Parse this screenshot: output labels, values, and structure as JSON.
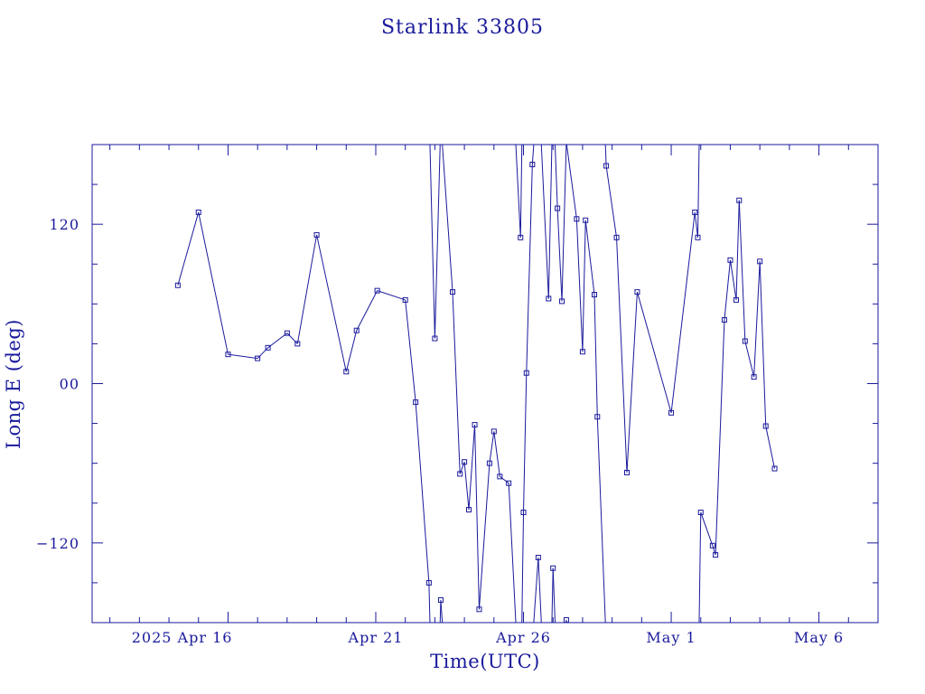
{
  "chart_data": {
    "type": "line",
    "title": "Starlink 33805",
    "xlabel": "Time(UTC)",
    "ylabel": "Long E (deg)",
    "x_unit": "days (April 2025)",
    "xlim": [
      11.4,
      38.0
    ],
    "ylim": [
      -180,
      180
    ],
    "x_tick_labels": [
      {
        "value": 16,
        "label": "2025 Apr 16"
      },
      {
        "value": 21,
        "label": "Apr 21"
      },
      {
        "value": 26,
        "label": "Apr 26"
      },
      {
        "value": 31,
        "label": "May  1"
      },
      {
        "value": 36,
        "label": "May  6"
      }
    ],
    "x_minor_ticks": [
      12,
      13,
      14,
      15,
      16,
      17,
      18,
      19,
      20,
      21,
      22,
      23,
      24,
      25,
      26,
      27,
      28,
      29,
      30,
      31,
      32,
      33,
      34,
      35,
      36,
      37
    ],
    "y_tick_labels": [
      {
        "value": 120,
        "label": "120"
      },
      {
        "value": 0,
        "label": "00"
      },
      {
        "value": -120,
        "label": "−120"
      }
    ],
    "y_minor_ticks": [
      -150,
      -120,
      -90,
      -60,
      -30,
      0,
      30,
      60,
      90,
      120,
      150
    ],
    "grid": false,
    "series": [
      {
        "name": "",
        "x": [
          14.3,
          15.0,
          16.0,
          17.0,
          17.35,
          18.0,
          18.35,
          19.0,
          20.0,
          20.35,
          21.05,
          22.0,
          22.35,
          22.8,
          23.0,
          23.2,
          23.6,
          23.85,
          24.0,
          24.15,
          24.35,
          24.5,
          24.85,
          25.0,
          25.2,
          25.5,
          25.9,
          26.0,
          26.1,
          26.3,
          26.5,
          26.85,
          27.0,
          27.15,
          27.3,
          27.45,
          27.8,
          28.0,
          28.1,
          28.4,
          28.5,
          28.8,
          29.15,
          29.5,
          29.85,
          31.0,
          31.8,
          31.9,
          32.0,
          32.4,
          32.5,
          32.8,
          33.0,
          33.2,
          33.3,
          33.5,
          33.8,
          34.0,
          34.2,
          34.5
        ],
        "y": [
          74,
          129,
          22,
          19,
          27,
          38,
          30,
          112,
          9,
          40,
          70,
          63,
          -14,
          -150,
          34,
          -163,
          69,
          -68,
          -59,
          -95,
          -31,
          -170,
          -60,
          -36,
          -70,
          -75,
          110,
          -97,
          8,
          165,
          -131,
          64,
          -139,
          132,
          62,
          -178,
          124,
          24,
          123,
          67,
          -25,
          164,
          110,
          -67,
          69,
          -22,
          129,
          110,
          -97,
          -122,
          -129,
          48,
          93,
          63,
          138,
          32,
          5,
          92,
          -32,
          -64
        ]
      }
    ]
  }
}
